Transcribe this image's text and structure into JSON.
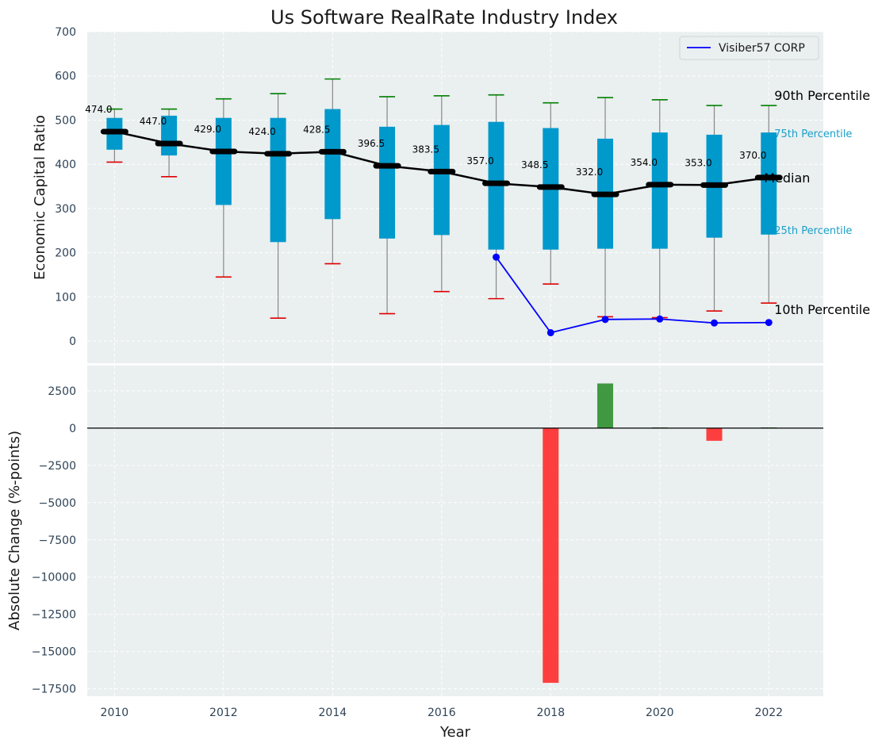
{
  "chart_data": [
    {
      "type": "box",
      "title": "Us Software RealRate Industry Index",
      "xlabel": "",
      "ylabel": "Economic Capital Ratio",
      "ylim": [
        -50,
        700
      ],
      "yticks": [
        0,
        100,
        200,
        300,
        400,
        500,
        600,
        700
      ],
      "xlim": [
        2009.5,
        2023
      ],
      "grid": true,
      "legend_position": "top-right",
      "colors": {
        "box": "#0099cc",
        "median_line": "#000000",
        "company_line": "#0000ff",
        "whisker_top": "#008000",
        "whisker_bottom": "#e00000",
        "whisker_line": "#888888",
        "background": "#eaeff0"
      },
      "years": [
        2010,
        2011,
        2012,
        2013,
        2014,
        2015,
        2016,
        2017,
        2018,
        2019,
        2020,
        2021,
        2022
      ],
      "p90": [
        525,
        525,
        548,
        560,
        593,
        553,
        555,
        557,
        539,
        551,
        546,
        533,
        533
      ],
      "p75": [
        505,
        510,
        505,
        505,
        525,
        485,
        489,
        496,
        482,
        458,
        472,
        467,
        472
      ],
      "median": [
        474.0,
        447.0,
        429.0,
        424.0,
        428.5,
        396.5,
        383.5,
        357.0,
        348.5,
        332.0,
        354.0,
        353.0,
        370.0
      ],
      "median_labels": [
        "474.0",
        "447.0",
        "429.0",
        "424.0",
        "428.5",
        "396.5",
        "383.5",
        "357.0",
        "348.5",
        "332.0",
        "354.0",
        "353.0",
        "370.0"
      ],
      "p25": [
        433,
        420,
        308,
        224,
        276,
        232,
        240,
        207,
        207,
        209,
        209,
        234,
        241
      ],
      "p10": [
        405,
        372,
        145,
        52,
        175,
        62,
        112,
        96,
        129,
        55,
        53,
        68,
        86
      ],
      "company": {
        "name": "Visiber57 CORP",
        "x": [
          2017,
          2018,
          2019,
          2020,
          2021,
          2022
        ],
        "y": [
          190,
          19,
          49,
          50,
          41,
          42
        ]
      },
      "annotations": {
        "p90": "90th Percentile",
        "p75": "75th Percentile",
        "median": "Median",
        "p25": "25th Percentile",
        "p10": "10th Percentile"
      }
    },
    {
      "type": "bar",
      "xlabel": "Year",
      "ylabel": "Absolute Change (%-points)",
      "ylim": [
        -18000,
        4200
      ],
      "yticks": [
        2500,
        0,
        -2500,
        -5000,
        -7500,
        -10000,
        -12500,
        -15000,
        -17500
      ],
      "ytick_labels": [
        "2500",
        "0",
        "−2500",
        "−5000",
        "−7500",
        "−10000",
        "−12500",
        "−15000",
        "−17500"
      ],
      "xticks": [
        2010,
        2012,
        2014,
        2016,
        2018,
        2020,
        2022
      ],
      "xtick_labels": [
        "2010",
        "2012",
        "2014",
        "2016",
        "2018",
        "2020",
        "2022"
      ],
      "x": [
        2018,
        2019,
        2020,
        2021,
        2022
      ],
      "values": [
        -17100,
        3000,
        50,
        -850,
        50
      ],
      "colors": {
        "positive": "#2e8f2e",
        "negative": "#ff2a2a"
      }
    }
  ],
  "yticks_top_labels": [
    "0",
    "100",
    "200",
    "300",
    "400",
    "500",
    "600",
    "700"
  ]
}
